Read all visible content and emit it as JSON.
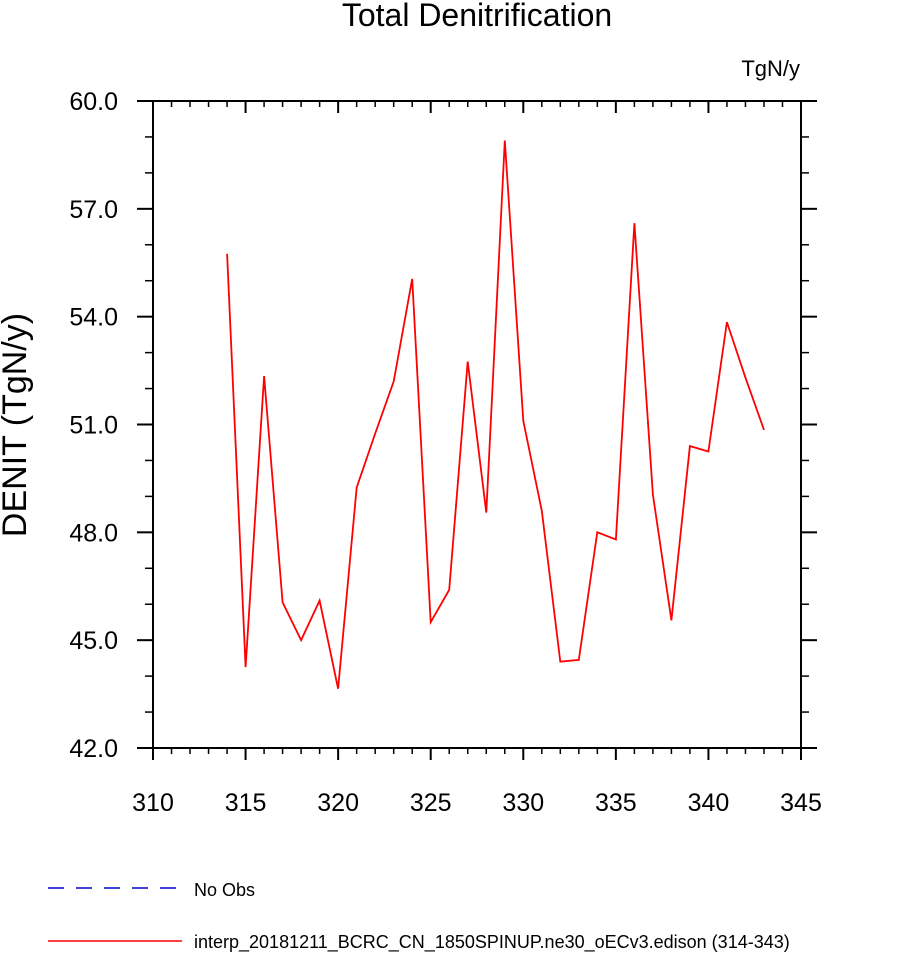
{
  "chart_data": {
    "type": "line",
    "title": "Total Denitrification",
    "units_label": "TgN/y",
    "ylabel": "DENIT  (TgN/y)",
    "xlabel": "",
    "xlim": [
      310,
      345
    ],
    "ylim": [
      42.0,
      60.0
    ],
    "x_ticks": [
      310,
      315,
      320,
      325,
      330,
      335,
      340,
      345
    ],
    "x_tick_labels": [
      "310",
      "315",
      "320",
      "325",
      "330",
      "335",
      "340",
      "345"
    ],
    "y_ticks": [
      42.0,
      45.0,
      48.0,
      51.0,
      54.0,
      57.0,
      60.0
    ],
    "y_tick_labels": [
      "42.0",
      "45.0",
      "48.0",
      "51.0",
      "54.0",
      "57.0",
      "60.0"
    ],
    "grid": false,
    "legend_placement": "bottom-left",
    "series": [
      {
        "name": "interp_20181211_BCRC_CN_1850SPINUP.ne30_oECv3.edison (314-343)",
        "color": "#ff0000",
        "dash": "solid",
        "x": [
          314,
          315,
          316,
          317,
          318,
          319,
          320,
          321,
          322,
          323,
          324,
          325,
          326,
          327,
          328,
          329,
          330,
          331,
          332,
          333,
          334,
          335,
          336,
          337,
          338,
          339,
          340,
          341,
          342,
          343
        ],
        "y": [
          55.75,
          44.25,
          52.35,
          46.05,
          45.0,
          46.1,
          43.65,
          49.25,
          50.75,
          52.2,
          55.05,
          45.5,
          46.4,
          52.75,
          48.55,
          58.9,
          51.1,
          48.6,
          44.4,
          44.45,
          48.0,
          47.8,
          56.6,
          49.05,
          45.55,
          50.4,
          50.25,
          53.85,
          52.3,
          50.85
        ]
      }
    ],
    "legend": [
      {
        "label": "No Obs",
        "color": "#0000cd",
        "dash": "dashed"
      },
      {
        "label": "interp_20181211_BCRC_CN_1850SPINUP.ne30_oECv3.edison (314-343)",
        "color": "#ff0000",
        "dash": "solid"
      }
    ]
  }
}
